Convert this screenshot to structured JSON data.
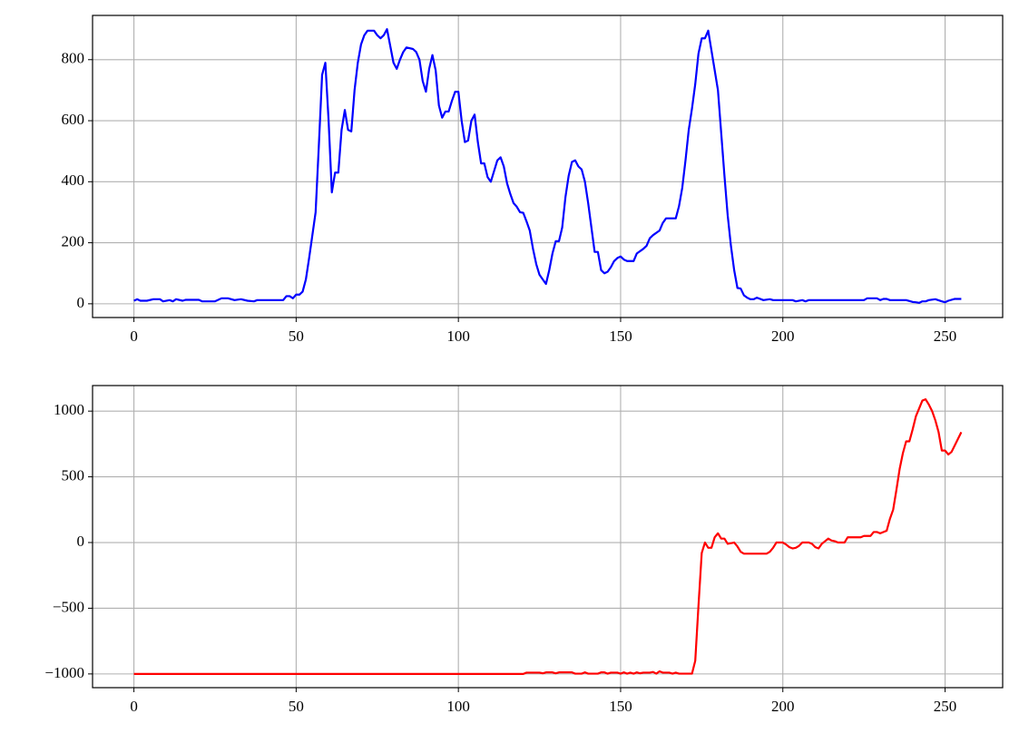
{
  "chart_data": [
    {
      "type": "line",
      "color": "#0000ff",
      "grid": true,
      "xlim": [
        -12.75,
        267.75
      ],
      "ylim": [
        -45,
        945
      ],
      "xticks": [
        0,
        50,
        100,
        150,
        200,
        250
      ],
      "yticks": [
        0,
        200,
        400,
        600,
        800
      ],
      "x": [
        0,
        1,
        2,
        4,
        6,
        8,
        9,
        11,
        12,
        13,
        15,
        16,
        20,
        21,
        25,
        27,
        29,
        31,
        33,
        35,
        37,
        38,
        46,
        47,
        48,
        49,
        50,
        51,
        52,
        53,
        54,
        56,
        57,
        58,
        59,
        60,
        61,
        62,
        63,
        64,
        65,
        66,
        67,
        68,
        69,
        70,
        71,
        72,
        74,
        75,
        76,
        77,
        78,
        79,
        80,
        81,
        82,
        83,
        84,
        86,
        87,
        88,
        89,
        90,
        91,
        92,
        93,
        94,
        95,
        96,
        97,
        98,
        99,
        100,
        101,
        102,
        103,
        104,
        105,
        106,
        107,
        108,
        109,
        110,
        111,
        112,
        113,
        114,
        115,
        116,
        117,
        118,
        119,
        120,
        121,
        122,
        123,
        124,
        125,
        126,
        127,
        128,
        129,
        130,
        131,
        132,
        133,
        134,
        135,
        136,
        137,
        138,
        139,
        140,
        141,
        142,
        143,
        144,
        145,
        146,
        147,
        148,
        149,
        150,
        151,
        152,
        154,
        155,
        157,
        158,
        159,
        160,
        162,
        163,
        164,
        167,
        168,
        169,
        170,
        171,
        172,
        173,
        174,
        175,
        176,
        177,
        178,
        180,
        181,
        182,
        183,
        184,
        185,
        186,
        187,
        188,
        189,
        190,
        191,
        192,
        194,
        196,
        197,
        203,
        204,
        206,
        207,
        208,
        225,
        226,
        229,
        230,
        231,
        232,
        233,
        238,
        240,
        241,
        242,
        243,
        244,
        245,
        247,
        249,
        250,
        251,
        253,
        255
      ],
      "values": [
        10,
        15,
        10,
        10,
        15,
        15,
        8,
        12,
        8,
        15,
        10,
        13,
        13,
        8,
        8,
        18,
        18,
        12,
        15,
        10,
        8,
        12,
        12,
        25,
        25,
        18,
        30,
        30,
        40,
        80,
        150,
        300,
        520,
        750,
        790,
        600,
        365,
        430,
        430,
        570,
        635,
        570,
        565,
        700,
        790,
        850,
        880,
        895,
        895,
        880,
        870,
        880,
        900,
        845,
        790,
        770,
        800,
        825,
        840,
        835,
        825,
        800,
        730,
        695,
        770,
        815,
        765,
        650,
        610,
        630,
        630,
        665,
        695,
        695,
        600,
        530,
        535,
        600,
        620,
        530,
        460,
        460,
        415,
        400,
        435,
        470,
        480,
        450,
        395,
        360,
        330,
        318,
        300,
        298,
        270,
        240,
        180,
        130,
        95,
        80,
        65,
        110,
        165,
        205,
        205,
        250,
        350,
        420,
        465,
        470,
        450,
        440,
        400,
        330,
        250,
        170,
        170,
        110,
        100,
        105,
        120,
        140,
        150,
        155,
        145,
        140,
        140,
        165,
        180,
        190,
        215,
        225,
        240,
        265,
        280,
        280,
        320,
        380,
        470,
        570,
        640,
        720,
        820,
        870,
        870,
        895,
        830,
        700,
        560,
        420,
        290,
        190,
        110,
        52,
        50,
        28,
        20,
        15,
        15,
        20,
        12,
        15,
        12,
        12,
        8,
        12,
        8,
        12,
        12,
        18,
        18,
        12,
        16,
        16,
        12,
        12,
        6,
        5,
        3,
        8,
        8,
        12,
        15,
        8,
        5,
        10,
        16,
        16
      ]
    },
    {
      "type": "line",
      "color": "#ff0000",
      "grid": true,
      "xlim": [
        -12.75,
        267.75
      ],
      "ylim": [
        -1104.5,
        1194.5
      ],
      "xticks": [
        0,
        50,
        100,
        150,
        200,
        250
      ],
      "yticks": [
        {
          "value": -1000,
          "label": "−1000"
        },
        {
          "value": -500,
          "label": "−500"
        },
        0,
        500,
        1000
      ],
      "x": [
        0,
        120,
        121,
        125,
        126,
        127,
        129,
        130,
        131,
        135,
        136,
        138,
        139,
        140,
        143,
        144,
        145,
        146,
        147,
        149,
        150,
        151,
        152,
        153,
        154,
        155,
        156,
        157,
        159,
        160,
        161,
        162,
        163,
        165,
        166,
        167,
        168,
        170,
        172,
        173,
        174,
        175,
        176,
        177,
        178,
        179,
        180,
        181,
        182,
        183,
        185,
        186,
        187,
        188,
        195,
        196,
        197,
        198,
        200,
        201,
        202,
        203,
        204,
        205,
        206,
        208,
        209,
        210,
        211,
        212,
        213,
        214,
        215,
        216,
        217,
        219,
        220,
        224,
        225,
        227,
        228,
        229,
        230,
        232,
        233,
        234,
        235,
        236,
        237,
        238,
        239,
        240,
        241,
        242,
        243,
        244,
        245,
        246,
        247,
        248,
        249,
        250,
        251,
        252,
        253,
        255
      ],
      "values": [
        -1000,
        -1000,
        -990,
        -990,
        -995,
        -988,
        -988,
        -995,
        -988,
        -988,
        -998,
        -998,
        -988,
        -998,
        -998,
        -988,
        -988,
        -998,
        -990,
        -990,
        -998,
        -988,
        -998,
        -990,
        -998,
        -988,
        -995,
        -990,
        -990,
        -985,
        -998,
        -980,
        -990,
        -990,
        -998,
        -990,
        -998,
        -998,
        -998,
        -900,
        -480,
        -80,
        0,
        -40,
        -40,
        40,
        70,
        30,
        30,
        -10,
        0,
        -30,
        -70,
        -85,
        -85,
        -70,
        -40,
        0,
        0,
        -15,
        -35,
        -45,
        -40,
        -25,
        0,
        0,
        -10,
        -35,
        -45,
        -10,
        10,
        30,
        15,
        10,
        0,
        0,
        40,
        40,
        50,
        50,
        80,
        80,
        70,
        90,
        180,
        250,
        400,
        560,
        680,
        770,
        770,
        860,
        960,
        1020,
        1080,
        1090,
        1050,
        1000,
        930,
        840,
        700,
        700,
        670,
        690,
        740,
        840
      ]
    }
  ]
}
